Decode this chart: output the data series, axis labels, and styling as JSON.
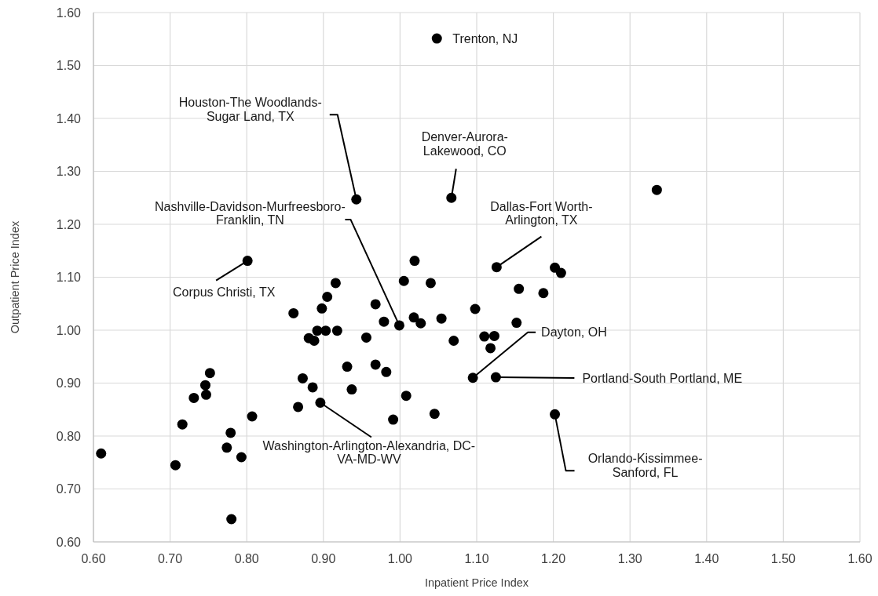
{
  "chart_data": {
    "type": "scatter",
    "xlabel": "Inpatient Price Index",
    "ylabel": "Outpatient Price Index",
    "xlim": [
      0.6,
      1.6
    ],
    "xticks": [
      {
        "value": 0.6,
        "label": "0.60"
      },
      {
        "value": 0.7,
        "label": "0.70"
      },
      {
        "value": 0.8,
        "label": "0.80"
      },
      {
        "value": 0.9,
        "label": "0.90"
      },
      {
        "value": 1.0,
        "label": "1.00"
      },
      {
        "value": 1.1,
        "label": "1.10"
      },
      {
        "value": 1.2,
        "label": "1.20"
      },
      {
        "value": 1.3,
        "label": "1.30"
      },
      {
        "value": 1.4,
        "label": "1.40"
      },
      {
        "value": 1.5,
        "label": "1.50"
      },
      {
        "value": 1.6,
        "label": "1.60"
      }
    ],
    "ylim": [
      0.6,
      1.6
    ],
    "yticks": [
      {
        "value": 0.6,
        "label": "0.60"
      },
      {
        "value": 0.7,
        "label": "0.70"
      },
      {
        "value": 0.8,
        "label": "0.80"
      },
      {
        "value": 0.9,
        "label": "0.90"
      },
      {
        "value": 1.0,
        "label": "1.00"
      },
      {
        "value": 1.1,
        "label": "1.10"
      },
      {
        "value": 1.2,
        "label": "1.20"
      },
      {
        "value": 1.3,
        "label": "1.30"
      },
      {
        "value": 1.4,
        "label": "1.40"
      },
      {
        "value": 1.5,
        "label": "1.50"
      },
      {
        "value": 1.6,
        "label": "1.60"
      }
    ],
    "grid": true,
    "marker": "circle",
    "series": [
      {
        "color": "#000000",
        "x": [
          1.048,
          0.943,
          1.067,
          1.335,
          0.801,
          1.019,
          1.005,
          1.04,
          0.916,
          0.905,
          1.126,
          1.202,
          1.21,
          1.155,
          1.187,
          0.861,
          0.898,
          0.968,
          0.979,
          0.999,
          1.018,
          1.027,
          1.054,
          0.892,
          0.903,
          0.918,
          0.881,
          0.888,
          0.956,
          0.931,
          0.968,
          0.982,
          0.873,
          0.886,
          0.937,
          0.896,
          0.867,
          1.008,
          0.991,
          1.045,
          0.752,
          0.746,
          0.747,
          0.731,
          0.716,
          0.807,
          0.779,
          0.774,
          0.793,
          0.707,
          0.61,
          0.78,
          1.098,
          1.152,
          1.07,
          1.11,
          1.123,
          1.118,
          1.095,
          1.125,
          1.202
        ],
        "values": [
          1.551,
          1.247,
          1.25,
          1.265,
          1.131,
          1.131,
          1.093,
          1.089,
          1.089,
          1.063,
          1.119,
          1.118,
          1.108,
          1.078,
          1.07,
          1.032,
          1.041,
          1.049,
          1.016,
          1.009,
          1.024,
          1.013,
          1.022,
          0.999,
          0.999,
          0.999,
          0.985,
          0.98,
          0.986,
          0.931,
          0.935,
          0.921,
          0.909,
          0.892,
          0.888,
          0.863,
          0.855,
          0.876,
          0.831,
          0.842,
          0.919,
          0.896,
          0.878,
          0.872,
          0.822,
          0.837,
          0.806,
          0.778,
          0.76,
          0.745,
          0.767,
          0.643,
          1.04,
          1.014,
          0.98,
          0.988,
          0.989,
          0.966,
          0.91,
          0.911,
          0.841
        ]
      }
    ],
    "annotations": [
      {
        "text": "Trenton, NJ",
        "x": 1.048,
        "y": 1.551
      },
      {
        "text": "Houston-The Woodlands-\nSugar Land, TX",
        "x": 0.943,
        "y": 1.247
      },
      {
        "text": "Denver-Aurora-\nLakewood, CO",
        "x": 1.067,
        "y": 1.25
      },
      {
        "text": "Nashville-Davidson-Murfreesboro-\nFranklin, TN",
        "x": 0.999,
        "y": 1.009
      },
      {
        "text": "Corpus Christi, TX",
        "x": 0.801,
        "y": 1.131
      },
      {
        "text": "Dallas-Fort Worth-\nArlington, TX",
        "x": 1.126,
        "y": 1.119
      },
      {
        "text": "Dayton, OH",
        "x": 1.095,
        "y": 0.91
      },
      {
        "text": "Portland-South Portland, ME",
        "x": 1.125,
        "y": 0.911
      },
      {
        "text": "Orlando-Kissimmee-\nSanford, FL",
        "x": 1.202,
        "y": 0.841
      },
      {
        "text": "Washington-Arlington-Alexandria, DC-\nVA-MD-WV",
        "x": 0.896,
        "y": 0.863
      }
    ]
  }
}
